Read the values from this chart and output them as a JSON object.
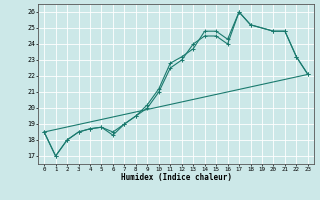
{
  "title": "",
  "xlabel": "Humidex (Indice chaleur)",
  "ylabel": "",
  "bg_color": "#cce8e8",
  "grid_color": "#ffffff",
  "line_color": "#1a7a6e",
  "xlim": [
    -0.5,
    23.5
  ],
  "ylim": [
    16.5,
    26.5
  ],
  "yticks": [
    17,
    18,
    19,
    20,
    21,
    22,
    23,
    24,
    25,
    26
  ],
  "xticks": [
    0,
    1,
    2,
    3,
    4,
    5,
    6,
    7,
    8,
    9,
    10,
    11,
    12,
    13,
    14,
    15,
    16,
    17,
    18,
    19,
    20,
    21,
    22,
    23
  ],
  "line1_x": [
    0,
    1,
    2,
    3,
    4,
    5,
    6,
    7,
    8,
    9,
    10,
    11,
    12,
    13,
    14,
    15,
    16,
    17,
    18,
    20,
    21,
    22,
    23
  ],
  "line1_y": [
    18.5,
    17.0,
    18.0,
    18.5,
    18.7,
    18.8,
    18.5,
    19.0,
    19.5,
    20.2,
    21.2,
    22.8,
    23.2,
    23.7,
    24.8,
    24.8,
    24.3,
    26.0,
    25.2,
    24.8,
    24.8,
    23.2,
    22.1
  ],
  "line2_x": [
    0,
    1,
    2,
    3,
    4,
    5,
    6,
    7,
    8,
    9,
    10,
    11,
    12,
    13,
    14,
    15,
    16,
    17,
    18,
    20,
    21,
    22,
    23
  ],
  "line2_y": [
    18.5,
    17.0,
    18.0,
    18.5,
    18.7,
    18.8,
    18.3,
    19.0,
    19.5,
    20.0,
    21.0,
    22.5,
    23.0,
    24.0,
    24.5,
    24.5,
    24.0,
    26.0,
    25.2,
    24.8,
    24.8,
    23.2,
    22.1
  ],
  "line3_x": [
    0,
    23
  ],
  "line3_y": [
    18.5,
    22.1
  ]
}
